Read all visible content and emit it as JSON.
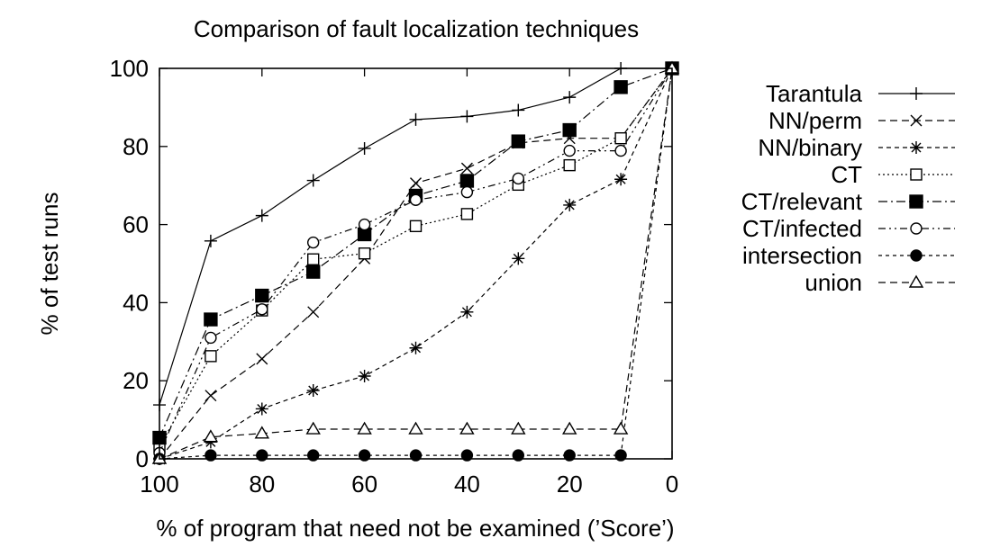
{
  "chart_data": {
    "type": "line",
    "title": "Comparison of fault localization techniques",
    "xlabel": "% of program that need not be examined (’Score’)",
    "ylabel": "% of test runs",
    "xlim": [
      100,
      0
    ],
    "ylim": [
      0,
      100
    ],
    "x_reversed": true,
    "grid": false,
    "legend_position": "right",
    "xticks": [
      100,
      80,
      60,
      40,
      20,
      0
    ],
    "yticks": [
      0,
      20,
      40,
      60,
      80,
      100
    ],
    "xtick_labels": [
      "100",
      "80",
      "60",
      "40",
      "20",
      "0"
    ],
    "ytick_labels": [
      "0",
      "20",
      "40",
      "60",
      "80",
      "100"
    ],
    "x": [
      100,
      90,
      80,
      70,
      60,
      50,
      40,
      30,
      20,
      10,
      0
    ],
    "series": [
      {
        "name": "Tarantula",
        "marker": "plus",
        "dash": "solid",
        "values": [
          13.8,
          55.8,
          62.3,
          71.3,
          79.5,
          86.9,
          87.7,
          89.3,
          92.6,
          100,
          100
        ]
      },
      {
        "name": "NN/perm",
        "marker": "cross",
        "dash": "dashed",
        "values": [
          0,
          16.2,
          25.6,
          37.6,
          51.3,
          70.6,
          74.4,
          80.9,
          82.1,
          82.1,
          100
        ]
      },
      {
        "name": "NN/binary",
        "marker": "star",
        "dash": "fine-dashed",
        "values": [
          0,
          4.3,
          12.8,
          17.5,
          21.2,
          28.4,
          37.6,
          51.3,
          65.0,
          71.6,
          100
        ]
      },
      {
        "name": "CT",
        "marker": "open-square",
        "dash": "dotted",
        "values": [
          3.1,
          26.3,
          38.0,
          51.1,
          52.6,
          59.6,
          62.7,
          70.2,
          75.2,
          82.1,
          100
        ]
      },
      {
        "name": "CT/relevant",
        "marker": "filled-square",
        "dash": "dash-dot",
        "values": [
          5.4,
          35.7,
          41.8,
          47.9,
          57.5,
          67.4,
          71.2,
          81.3,
          84.2,
          95.2,
          100
        ]
      },
      {
        "name": "CT/infected",
        "marker": "open-circle",
        "dash": "dash-dot-dot",
        "values": [
          1.5,
          31.0,
          38.3,
          55.4,
          60.0,
          66.3,
          68.3,
          71.8,
          78.9,
          78.9,
          100
        ]
      },
      {
        "name": "intersection",
        "marker": "filled-circle",
        "dash": "short-dashed",
        "values": [
          0,
          0.9,
          0.9,
          0.9,
          0.9,
          0.9,
          0.9,
          0.9,
          0.9,
          0.9,
          100
        ]
      },
      {
        "name": "union",
        "marker": "open-triangle",
        "dash": "dashed",
        "values": [
          0,
          5.6,
          6.5,
          7.6,
          7.6,
          7.6,
          7.6,
          7.6,
          7.6,
          7.6,
          100
        ]
      }
    ]
  }
}
